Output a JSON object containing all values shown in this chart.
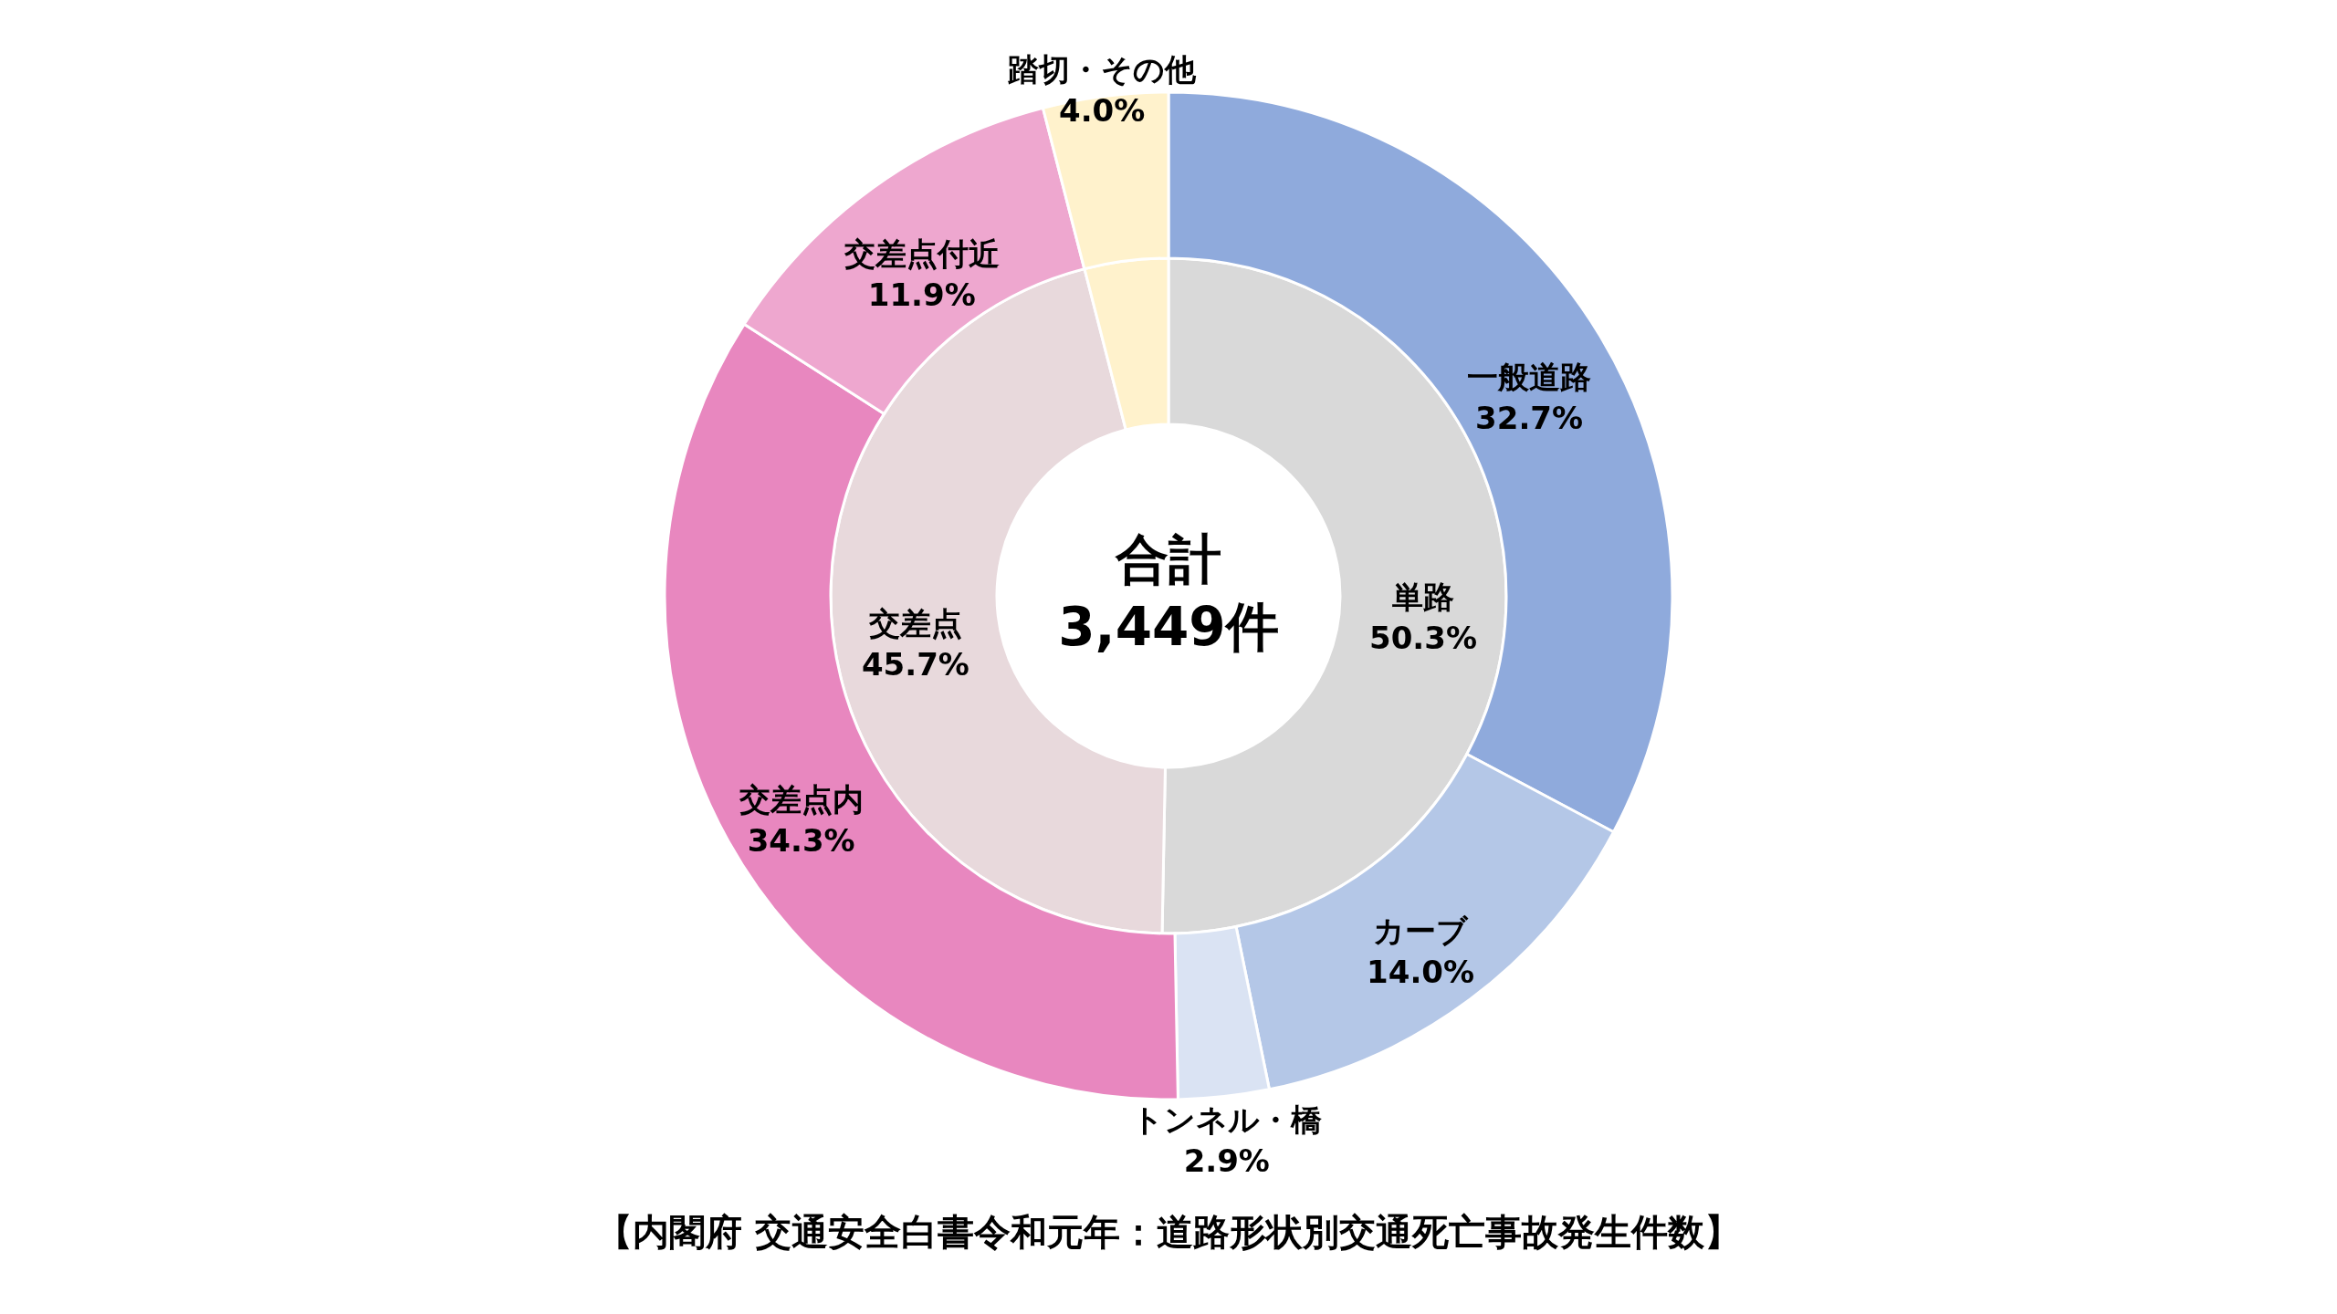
{
  "chart_data": [
    {
      "type": "donut",
      "title": "【内閣府 交通安全白書令和元年：道路形状別交通死亡事故発生件数】",
      "annotations": [
        "合計",
        "3,449件"
      ],
      "categories": [
        "単路",
        "交差点",
        null
      ],
      "values": [
        50.3,
        45.7,
        4.0
      ],
      "colors": [
        "#d9d9d9",
        "#e8d9dc",
        "#fff2cc"
      ],
      "value_labels": [
        "50.3%",
        "45.7%",
        null
      ]
    },
    {
      "type": "donut",
      "categories": [
        "一般道路",
        "カーブ",
        "トンネル・橋",
        "交差点内",
        "交差点付近",
        "踏切・その他"
      ],
      "values": [
        32.7,
        14.0,
        2.9,
        34.3,
        11.9,
        4.0
      ],
      "colors": [
        "#8faadc",
        "#b4c7e7",
        "#dae3f3",
        "#e887bf",
        "#eea7cf",
        "#fff2cc"
      ],
      "value_labels": [
        "32.7%",
        "14.0%",
        "2.9%",
        "34.3%",
        "11.9%",
        "4.0%"
      ]
    }
  ]
}
